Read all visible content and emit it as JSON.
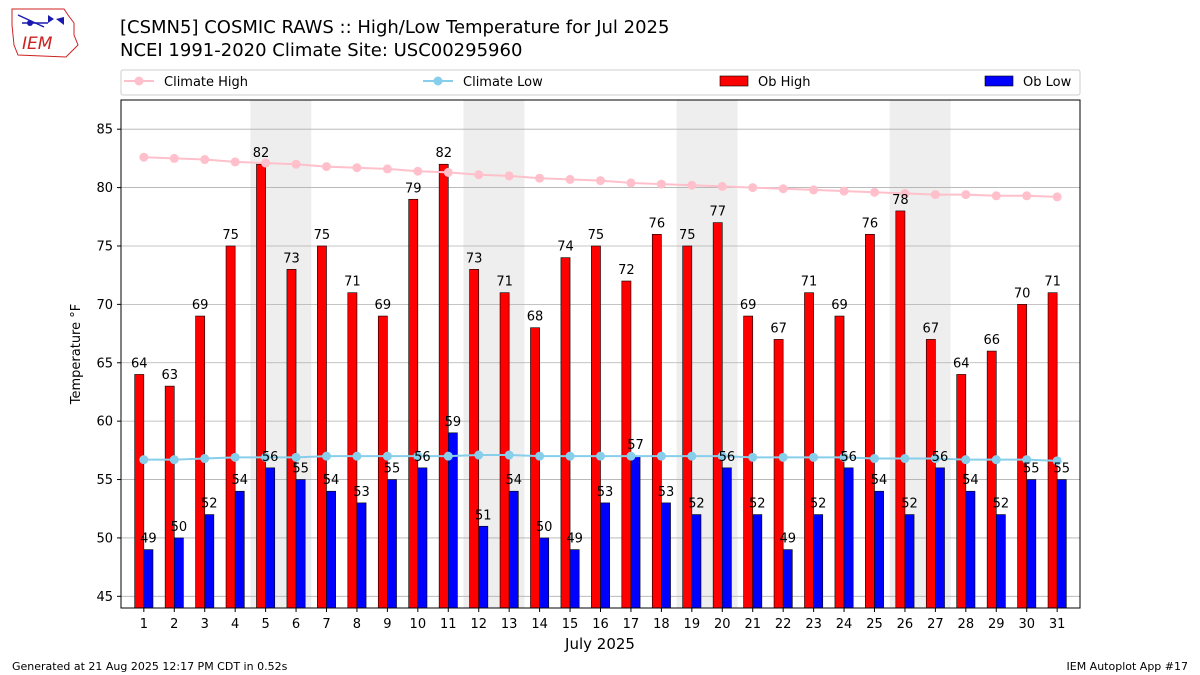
{
  "header": {
    "logo_text": "IEM",
    "title_line1": "[CSMN5] COSMIC RAWS :: High/Low Temperature for Jul 2025",
    "title_line2": "NCEI 1991-2020 Climate Site: USC00295960"
  },
  "footer": {
    "generated": "Generated at 21 Aug 2025 12:17 PM CDT in 0.52s",
    "app": "IEM Autoplot App #17"
  },
  "colors": {
    "climate_high": "#ffc0cb",
    "climate_low": "#87ceeb",
    "ob_high": "#ff0000",
    "ob_low": "#0000ff",
    "weekend_shade": "#eeeeee",
    "grid": "#b0b0b0"
  },
  "chart_data": {
    "type": "bar",
    "xlabel": "July 2025",
    "ylabel": "Temperature °F",
    "ylim": [
      44,
      87.5
    ],
    "yticks": [
      45,
      50,
      55,
      60,
      65,
      70,
      75,
      80,
      85
    ],
    "grid": "horizontal",
    "legend_placement": "top",
    "days": [
      1,
      2,
      3,
      4,
      5,
      6,
      7,
      8,
      9,
      10,
      11,
      12,
      13,
      14,
      15,
      16,
      17,
      18,
      19,
      20,
      21,
      22,
      23,
      24,
      25,
      26,
      27,
      28,
      29,
      30,
      31
    ],
    "shaded_days": [
      [
        5,
        6
      ],
      [
        12,
        13
      ],
      [
        19,
        20
      ],
      [
        26,
        27
      ]
    ],
    "series": [
      {
        "name": "Climate High",
        "kind": "line",
        "values": [
          82.6,
          82.5,
          82.4,
          82.2,
          82.1,
          82.0,
          81.8,
          81.7,
          81.6,
          81.4,
          81.3,
          81.1,
          81.0,
          80.8,
          80.7,
          80.6,
          80.4,
          80.3,
          80.2,
          80.1,
          80.0,
          79.9,
          79.8,
          79.7,
          79.6,
          79.5,
          79.4,
          79.4,
          79.3,
          79.3,
          79.2
        ]
      },
      {
        "name": "Climate Low",
        "kind": "line",
        "values": [
          56.7,
          56.7,
          56.8,
          56.9,
          56.9,
          56.9,
          57.0,
          57.0,
          57.0,
          57.0,
          57.0,
          57.1,
          57.1,
          57.0,
          57.0,
          57.0,
          57.0,
          57.0,
          57.0,
          57.0,
          56.9,
          56.9,
          56.9,
          56.9,
          56.8,
          56.8,
          56.8,
          56.7,
          56.7,
          56.7,
          56.6
        ]
      },
      {
        "name": "Ob High",
        "kind": "bar",
        "values": [
          64,
          63,
          69,
          75,
          82,
          73,
          75,
          71,
          69,
          79,
          82,
          73,
          71,
          68,
          74,
          75,
          72,
          76,
          75,
          77,
          69,
          67,
          71,
          69,
          76,
          78,
          67,
          64,
          66,
          70,
          71
        ]
      },
      {
        "name": "Ob Low",
        "kind": "bar",
        "values": [
          49,
          50,
          52,
          54,
          56,
          55,
          54,
          53,
          55,
          56,
          59,
          51,
          54,
          50,
          49,
          53,
          57,
          53,
          52,
          56,
          52,
          49,
          52,
          56,
          54,
          52,
          56,
          54,
          52,
          55,
          55
        ]
      }
    ]
  }
}
